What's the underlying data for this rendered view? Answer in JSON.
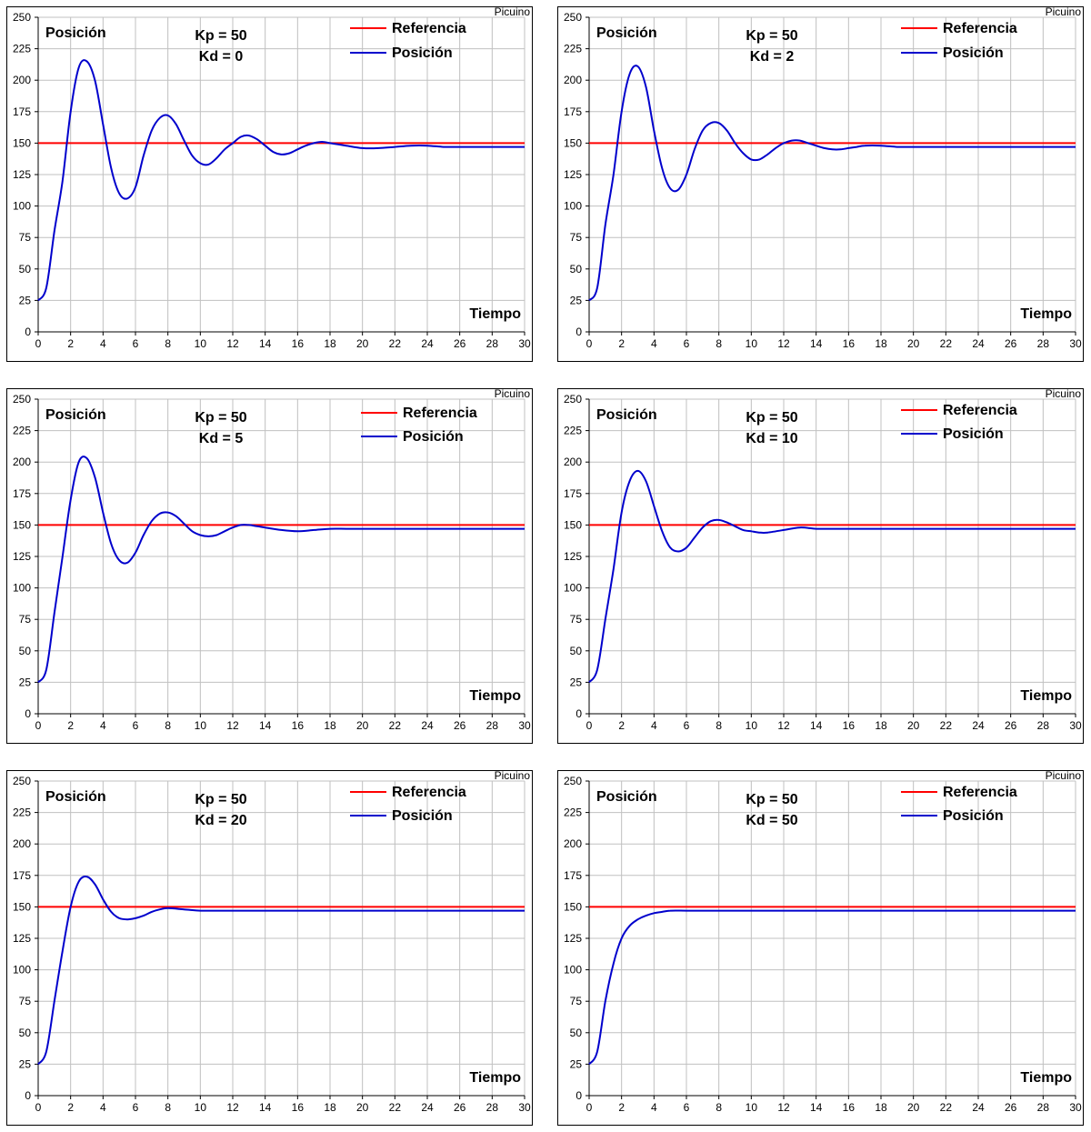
{
  "colors": {
    "reference": "#ff0000",
    "position": "#0000cc",
    "grid": "#c0c0c0"
  },
  "chart_data": [
    {
      "type": "line",
      "credit": "Picuino",
      "ylabel": "Posición",
      "xlabel": "Tiempo",
      "annotations": [
        "Kp = 50",
        "Kd = 0"
      ],
      "xlim": [
        0,
        30
      ],
      "ylim": [
        0,
        250
      ],
      "xticks": [
        0,
        2,
        4,
        6,
        8,
        10,
        12,
        14,
        16,
        18,
        20,
        22,
        24,
        26,
        28,
        30
      ],
      "yticks": [
        0,
        25,
        50,
        75,
        100,
        125,
        150,
        175,
        200,
        225,
        250
      ],
      "grid": true,
      "legend": "top-right",
      "series": [
        {
          "name": "Referencia",
          "x": [
            0,
            30
          ],
          "y": [
            150,
            150
          ]
        },
        {
          "name": "Posición",
          "x": [
            0,
            0.5,
            1,
            1.5,
            2,
            2.5,
            3,
            3.5,
            4,
            4.5,
            5,
            5.5,
            6,
            6.5,
            7,
            7.5,
            8,
            8.5,
            9,
            9.5,
            10,
            10.5,
            11,
            11.5,
            12,
            12.5,
            13,
            13.5,
            14,
            14.5,
            15,
            15.5,
            16,
            16.5,
            17,
            17.5,
            18,
            18.5,
            19,
            20,
            21,
            22,
            23,
            24,
            25,
            26,
            27,
            28,
            29,
            30
          ],
          "y": [
            25,
            35,
            80,
            120,
            175,
            210,
            215,
            200,
            165,
            130,
            110,
            106,
            115,
            140,
            160,
            170,
            172,
            165,
            152,
            140,
            134,
            133,
            138,
            145,
            150,
            155,
            156,
            153,
            148,
            143,
            141,
            142,
            145,
            148,
            150,
            151,
            150,
            149,
            148,
            146,
            146,
            147,
            148,
            148,
            147,
            147,
            147,
            147,
            147,
            147
          ]
        }
      ]
    },
    {
      "type": "line",
      "credit": "Picuino",
      "ylabel": "Posición",
      "xlabel": "Tiempo",
      "annotations": [
        "Kp = 50",
        "Kd = 2"
      ],
      "xlim": [
        0,
        30
      ],
      "ylim": [
        0,
        250
      ],
      "xticks": [
        0,
        2,
        4,
        6,
        8,
        10,
        12,
        14,
        16,
        18,
        20,
        22,
        24,
        26,
        28,
        30
      ],
      "yticks": [
        0,
        25,
        50,
        75,
        100,
        125,
        150,
        175,
        200,
        225,
        250
      ],
      "grid": true,
      "legend": "top-right",
      "series": [
        {
          "name": "Referencia",
          "x": [
            0,
            30
          ],
          "y": [
            150,
            150
          ]
        },
        {
          "name": "Posición",
          "x": [
            0,
            0.5,
            1,
            1.5,
            2,
            2.5,
            3,
            3.5,
            4,
            4.5,
            5,
            5.5,
            6,
            6.5,
            7,
            7.5,
            8,
            8.5,
            9,
            9.5,
            10,
            10.5,
            11,
            11.5,
            12,
            12.5,
            13,
            13.5,
            14,
            14.5,
            15,
            15.5,
            16,
            16.5,
            17,
            18,
            19,
            20,
            21,
            22,
            23,
            24,
            25,
            26,
            27,
            28,
            29,
            30
          ],
          "y": [
            25,
            35,
            85,
            125,
            175,
            205,
            211,
            195,
            160,
            130,
            114,
            113,
            125,
            145,
            160,
            166,
            166,
            160,
            150,
            142,
            137,
            137,
            141,
            146,
            150,
            152,
            152,
            150,
            148,
            146,
            145,
            145,
            146,
            147,
            148,
            148,
            147,
            147,
            147,
            147,
            147,
            147,
            147,
            147,
            147,
            147,
            147,
            147
          ]
        }
      ]
    },
    {
      "type": "line",
      "credit": "Picuino",
      "ylabel": "Posición",
      "xlabel": "Tiempo",
      "annotations": [
        "Kp = 50",
        "Kd = 5"
      ],
      "xlim": [
        0,
        30
      ],
      "ylim": [
        0,
        250
      ],
      "xticks": [
        0,
        2,
        4,
        6,
        8,
        10,
        12,
        14,
        16,
        18,
        20,
        22,
        24,
        26,
        28,
        30
      ],
      "yticks": [
        0,
        25,
        50,
        75,
        100,
        125,
        150,
        175,
        200,
        225,
        250
      ],
      "grid": true,
      "legend": "top-right",
      "series": [
        {
          "name": "Referencia",
          "x": [
            0,
            30
          ],
          "y": [
            150,
            150
          ]
        },
        {
          "name": "Posición",
          "x": [
            0,
            0.5,
            1,
            1.5,
            2,
            2.5,
            3,
            3.5,
            4,
            4.5,
            5,
            5.5,
            6,
            6.5,
            7,
            7.5,
            8,
            8.5,
            9,
            9.5,
            10,
            10.5,
            11,
            11.5,
            12,
            12.5,
            13,
            13.5,
            14,
            15,
            16,
            17,
            18,
            19,
            20,
            22,
            24,
            26,
            28,
            30
          ],
          "y": [
            25,
            35,
            80,
            125,
            170,
            200,
            203,
            188,
            160,
            135,
            122,
            120,
            128,
            142,
            153,
            159,
            160,
            157,
            151,
            145,
            142,
            141,
            142,
            145,
            148,
            150,
            150,
            149,
            148,
            146,
            145,
            146,
            147,
            147,
            147,
            147,
            147,
            147,
            147,
            147
          ]
        }
      ]
    },
    {
      "type": "line",
      "credit": "Picuino",
      "ylabel": "Posición",
      "xlabel": "Tiempo",
      "annotations": [
        "Kp = 50",
        "Kd = 10"
      ],
      "xlim": [
        0,
        30
      ],
      "ylim": [
        0,
        250
      ],
      "xticks": [
        0,
        2,
        4,
        6,
        8,
        10,
        12,
        14,
        16,
        18,
        20,
        22,
        24,
        26,
        28,
        30
      ],
      "yticks": [
        0,
        25,
        50,
        75,
        100,
        125,
        150,
        175,
        200,
        225,
        250
      ],
      "grid": true,
      "legend": "top-right",
      "series": [
        {
          "name": "Referencia",
          "x": [
            0,
            30
          ],
          "y": [
            150,
            150
          ]
        },
        {
          "name": "Posición",
          "x": [
            0,
            0.5,
            1,
            1.5,
            2,
            2.5,
            3,
            3.5,
            4,
            4.5,
            5,
            5.5,
            6,
            6.5,
            7,
            7.5,
            8,
            8.5,
            9,
            9.5,
            10,
            10.5,
            11,
            12,
            13,
            14,
            15,
            16,
            18,
            20,
            22,
            24,
            26,
            28,
            30
          ],
          "y": [
            25,
            35,
            75,
            115,
            160,
            185,
            193,
            185,
            165,
            145,
            132,
            129,
            132,
            140,
            148,
            153,
            154,
            152,
            149,
            146,
            145,
            144,
            144,
            146,
            148,
            147,
            147,
            147,
            147,
            147,
            147,
            147,
            147,
            147,
            147
          ]
        }
      ]
    },
    {
      "type": "line",
      "credit": "Picuino",
      "ylabel": "Posición",
      "xlabel": "Tiempo",
      "annotations": [
        "Kp = 50",
        "Kd = 20"
      ],
      "xlim": [
        0,
        30
      ],
      "ylim": [
        0,
        250
      ],
      "xticks": [
        0,
        2,
        4,
        6,
        8,
        10,
        12,
        14,
        16,
        18,
        20,
        22,
        24,
        26,
        28,
        30
      ],
      "yticks": [
        0,
        25,
        50,
        75,
        100,
        125,
        150,
        175,
        200,
        225,
        250
      ],
      "grid": true,
      "legend": "top-right",
      "series": [
        {
          "name": "Referencia",
          "x": [
            0,
            30
          ],
          "y": [
            150,
            150
          ]
        },
        {
          "name": "Posición",
          "x": [
            0,
            0.5,
            1,
            1.5,
            2,
            2.5,
            3,
            3.5,
            4,
            4.5,
            5,
            5.5,
            6,
            6.5,
            7,
            7.5,
            8,
            9,
            10,
            11,
            12,
            14,
            16,
            18,
            20,
            22,
            24,
            26,
            28,
            30
          ],
          "y": [
            25,
            35,
            75,
            115,
            150,
            170,
            174,
            168,
            156,
            146,
            141,
            140,
            141,
            143,
            146,
            148,
            149,
            148,
            147,
            147,
            147,
            147,
            147,
            147,
            147,
            147,
            147,
            147,
            147,
            147
          ]
        }
      ]
    },
    {
      "type": "line",
      "credit": "Picuino",
      "ylabel": "Posición",
      "xlabel": "Tiempo",
      "annotations": [
        "Kp = 50",
        "Kd = 50"
      ],
      "xlim": [
        0,
        30
      ],
      "ylim": [
        0,
        250
      ],
      "xticks": [
        0,
        2,
        4,
        6,
        8,
        10,
        12,
        14,
        16,
        18,
        20,
        22,
        24,
        26,
        28,
        30
      ],
      "yticks": [
        0,
        25,
        50,
        75,
        100,
        125,
        150,
        175,
        200,
        225,
        250
      ],
      "grid": true,
      "legend": "top-right",
      "series": [
        {
          "name": "Referencia",
          "x": [
            0,
            30
          ],
          "y": [
            150,
            150
          ]
        },
        {
          "name": "Posición",
          "x": [
            0,
            0.5,
            1,
            1.5,
            2,
            2.5,
            3,
            3.5,
            4,
            4.5,
            5,
            6,
            7,
            8,
            10,
            12,
            15,
            20,
            25,
            30
          ],
          "y": [
            25,
            35,
            75,
            105,
            125,
            135,
            140,
            143,
            145,
            146,
            147,
            147,
            147,
            147,
            147,
            147,
            147,
            147,
            147,
            147
          ]
        }
      ]
    }
  ]
}
